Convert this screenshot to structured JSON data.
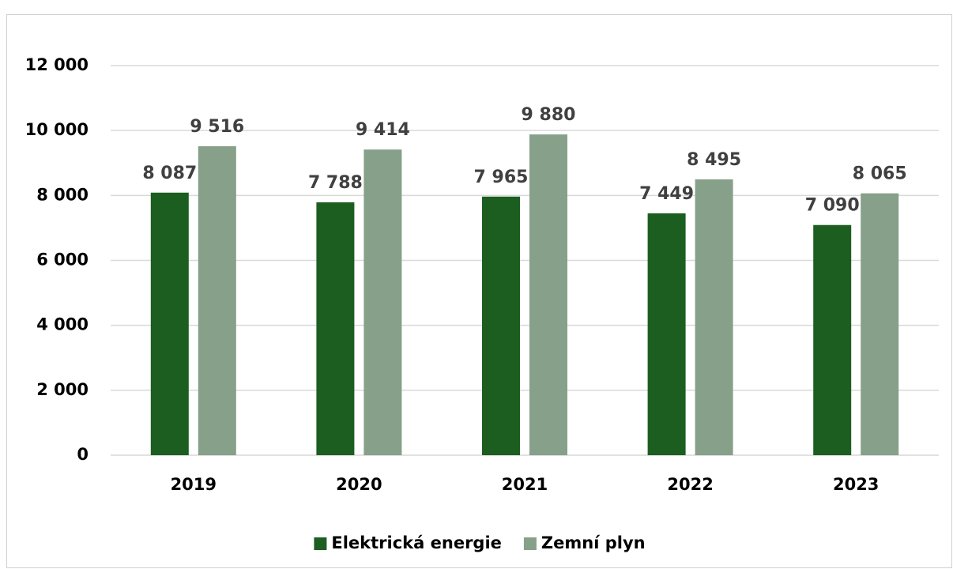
{
  "chart_data": {
    "type": "bar",
    "categories": [
      "2019",
      "2020",
      "2021",
      "2022",
      "2023"
    ],
    "series": [
      {
        "name": "Elektrická energie",
        "color": "#1b5e20",
        "values": [
          8087,
          7788,
          7965,
          7449,
          7090
        ],
        "value_labels": [
          "8 087",
          "7 788",
          "7 965",
          "7 449",
          "7 090"
        ]
      },
      {
        "name": "Zemní plyn",
        "color": "#87a089",
        "values": [
          9516,
          9414,
          9880,
          8495,
          8065
        ],
        "value_labels": [
          "9 516",
          "9 414",
          "9 880",
          "8 495",
          "8 065"
        ]
      }
    ],
    "ylim": [
      0,
      12000
    ],
    "yticks": [
      0,
      {
        "value": 2000,
        "label": "2 000"
      },
      {
        "value": 4000,
        "label": "4 000"
      },
      {
        "value": 6000,
        "label": "6 000"
      },
      {
        "value": 8000,
        "label": "8 000"
      },
      {
        "value": 10000,
        "label": "10 000"
      },
      {
        "value": 12000,
        "label": "12 000"
      }
    ],
    "grid": true,
    "legend": "bottom"
  }
}
